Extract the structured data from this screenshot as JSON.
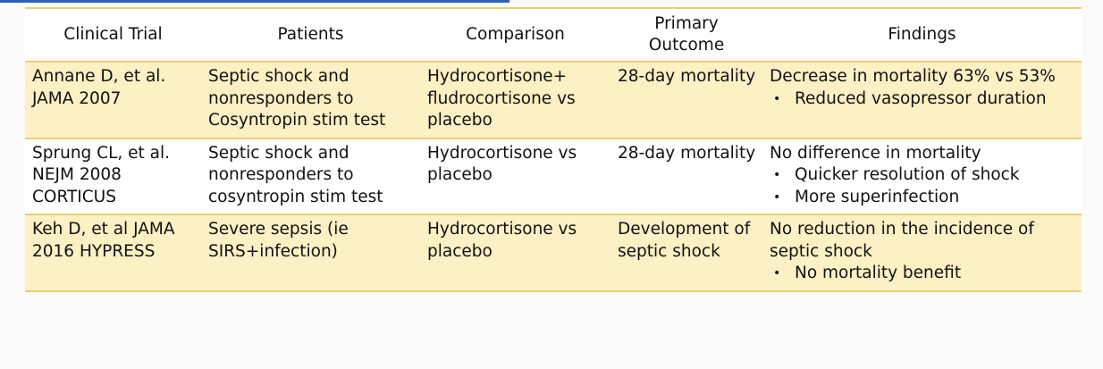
{
  "table": {
    "header": [
      "Clinical Trial",
      "Patients",
      "Comparison",
      "Primary Outcome",
      "Findings"
    ],
    "rows": [
      {
        "trial": "Annane D, et al. JAMA 2007",
        "patients": "Septic shock and nonresponders to Cosyntropin stim test",
        "comparison": "Hydrocortisone+ fludrocortisone vs placebo",
        "outcome": "28-day mortality",
        "findings": {
          "text": "Decrease in mortality 63% vs 53%",
          "bullets": [
            "Reduced vasopressor duration"
          ]
        }
      },
      {
        "trial": "Sprung CL, et al. NEJM 2008 CORTICUS",
        "patients": "Septic shock and nonresponders to cosyntropin stim test",
        "comparison": "Hydrocortisone vs placebo",
        "outcome": "28-day mortality",
        "findings": {
          "text": "No difference in mortality",
          "bullets": [
            "Quicker resolution of shock",
            "More superinfection"
          ]
        }
      },
      {
        "trial": "Keh D, et al JAMA 2016 HYPRESS",
        "patients": "Severe sepsis (ie SIRS+infection)",
        "comparison": "Hydrocortisone vs placebo",
        "outcome": "Development of septic shock",
        "findings": {
          "text": "No reduction in the incidence of septic shock",
          "bullets": [
            "No mortality benefit"
          ]
        }
      }
    ]
  }
}
